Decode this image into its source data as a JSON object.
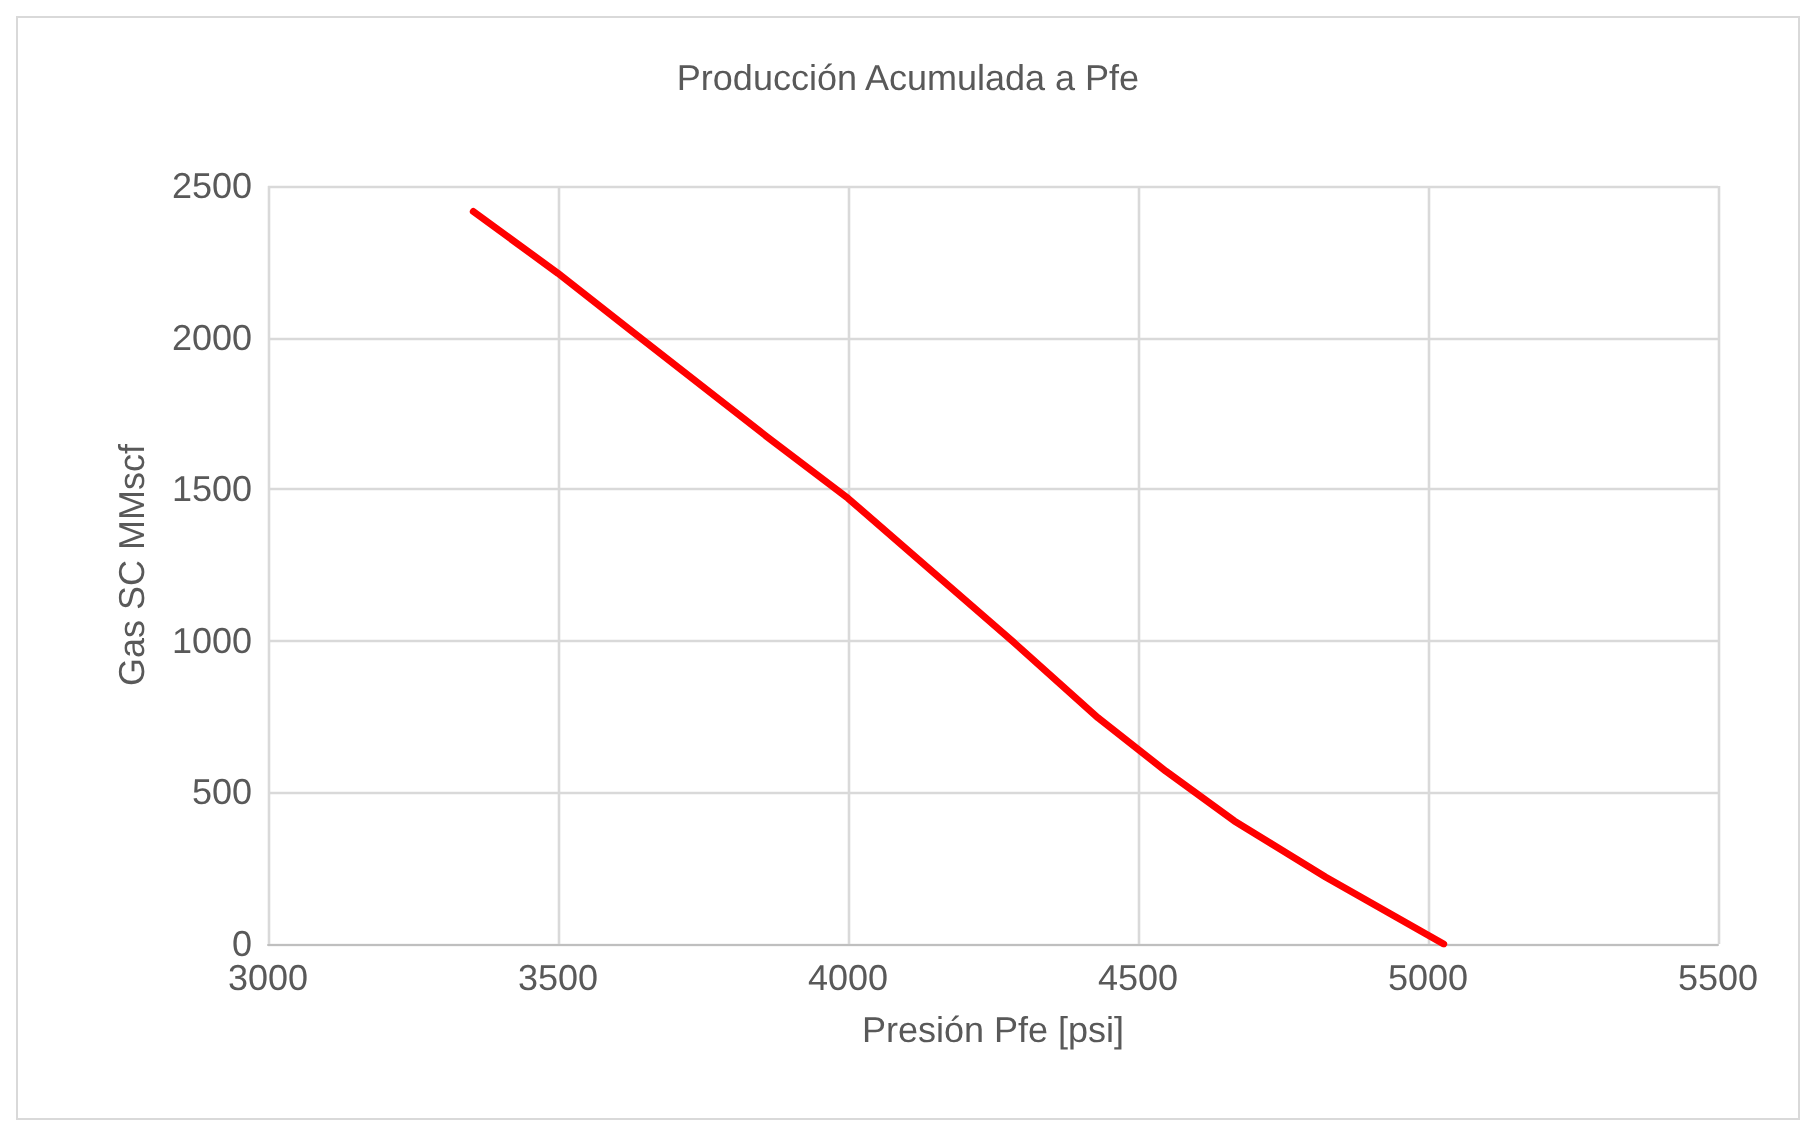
{
  "chart_data": {
    "type": "line",
    "title": "Producción Acumulada a Pfe",
    "xlabel": "Presión Pfe [psi]",
    "ylabel": "Gas SC MMscf",
    "series": [
      {
        "color": "#ff0000",
        "x": [
          3354,
          3500,
          3624,
          3859,
          4000,
          4284,
          4431,
          4548,
          4666,
          4824,
          5027
        ],
        "values": [
          2416,
          2212,
          2026,
          1675,
          1470,
          998,
          746,
          570,
          406,
          220,
          0
        ]
      }
    ],
    "xlim": [
      3000,
      5500
    ],
    "xticks": [
      3000,
      3500,
      4000,
      4500,
      5000,
      5500
    ],
    "ylim": [
      0,
      2500
    ],
    "yticks": [
      0,
      500,
      1000,
      1500,
      2000,
      2500
    ],
    "grid": true,
    "marker": "none",
    "line_style": "solid"
  }
}
